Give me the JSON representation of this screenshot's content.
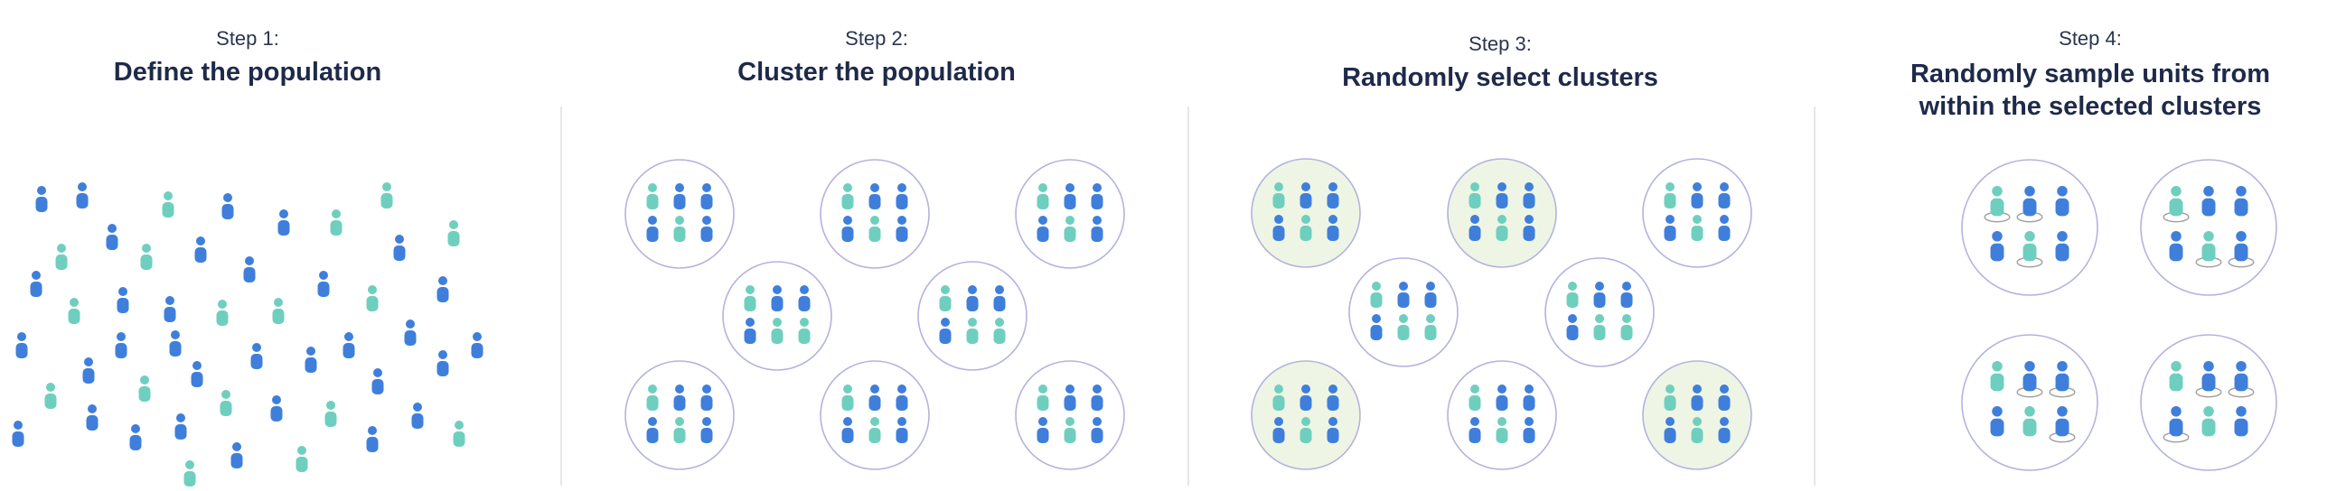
{
  "steps": [
    {
      "label": "Step 1:",
      "title_lines": [
        "Define the population"
      ]
    },
    {
      "label": "Step 2:",
      "title_lines": [
        "Cluster the population"
      ]
    },
    {
      "label": "Step 3:",
      "title_lines": [
        "Randomly select clusters"
      ]
    },
    {
      "label": "Step 4:",
      "title_lines": [
        "Randomly sample units from",
        "within the selected clusters"
      ]
    }
  ],
  "colors": {
    "blue": "#3f7fdb",
    "teal": "#6fcfbe",
    "cluster_ring": "#b3b3df",
    "selected_fill": "#eef5e4",
    "sample_ring": "#a0a0a0",
    "text": "#1f2a4a"
  },
  "icons": {
    "person": "person-icon",
    "cluster": "cluster-circle"
  }
}
